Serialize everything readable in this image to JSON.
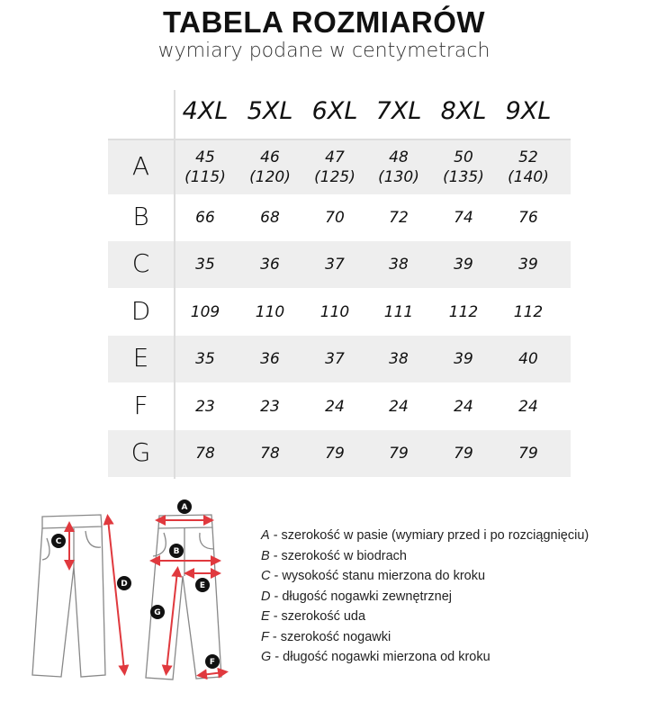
{
  "title": "TABELA ROZMIARÓW",
  "subtitle": "wymiary podane w centymetrach",
  "table": {
    "sizes": [
      "4XL",
      "5XL",
      "6XL",
      "7XL",
      "8XL",
      "9XL"
    ],
    "rows": [
      {
        "label": "A",
        "values": [
          "45",
          "46",
          "47",
          "48",
          "50",
          "52"
        ],
        "secondary": [
          "(115)",
          "(120)",
          "(125)",
          "(130)",
          "(135)",
          "(140)"
        ]
      },
      {
        "label": "B",
        "values": [
          "66",
          "68",
          "70",
          "72",
          "74",
          "76"
        ]
      },
      {
        "label": "C",
        "values": [
          "35",
          "36",
          "37",
          "38",
          "39",
          "39"
        ]
      },
      {
        "label": "D",
        "values": [
          "109",
          "110",
          "110",
          "111",
          "112",
          "112"
        ]
      },
      {
        "label": "E",
        "values": [
          "35",
          "36",
          "37",
          "38",
          "39",
          "40"
        ]
      },
      {
        "label": "F",
        "values": [
          "23",
          "23",
          "24",
          "24",
          "24",
          "24"
        ]
      },
      {
        "label": "G",
        "values": [
          "78",
          "78",
          "79",
          "79",
          "79",
          "79"
        ]
      }
    ]
  },
  "legend": [
    {
      "letter": "A",
      "text": " - szerokość w pasie (wymiary przed i po rozciągnięciu)"
    },
    {
      "letter": "B",
      "text": " - szerokość w biodrach"
    },
    {
      "letter": "C",
      "text": " - wysokość stanu mierzona do kroku"
    },
    {
      "letter": "D",
      "text": " - długość nogawki zewnętrznej"
    },
    {
      "letter": "E",
      "text": " - szerokość uda"
    },
    {
      "letter": "F",
      "text": " - szerokość nogawki"
    },
    {
      "letter": "G",
      "text": " - długość nogawki mierzona od kroku"
    }
  ],
  "colors": {
    "row_alt": "#eeeeee",
    "arrow": "#e0393e",
    "marker": "#111111"
  }
}
